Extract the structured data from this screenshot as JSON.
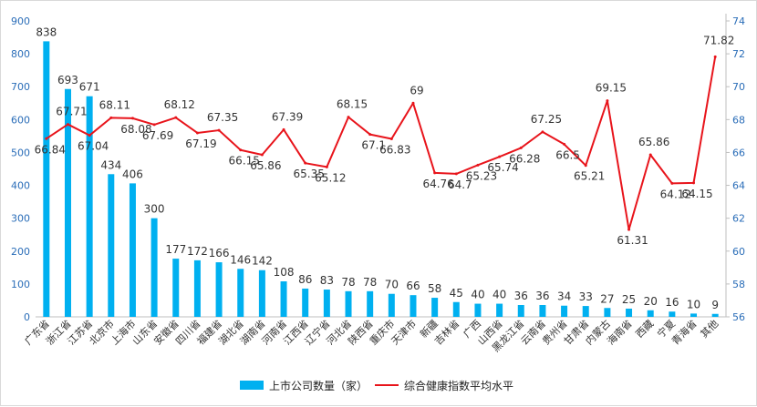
{
  "chart_data": {
    "type": "bar",
    "categories": [
      "广东省",
      "浙江省",
      "江苏省",
      "北京市",
      "上海市",
      "山东省",
      "安徽省",
      "四川省",
      "福建省",
      "湖北省",
      "湖南省",
      "河南省",
      "江西省",
      "辽宁省",
      "河北省",
      "陕西省",
      "重庆市",
      "天津市",
      "新疆",
      "吉林省",
      "广西",
      "山西省",
      "黑龙江省",
      "云南省",
      "贵州省",
      "甘肃省",
      "内蒙古",
      "海南省",
      "西藏",
      "宁夏",
      "青海省",
      "其他"
    ],
    "series": [
      {
        "name": "上市公司数量（家）",
        "type": "bar",
        "axis": "left",
        "color": "#00b0f0",
        "values": [
          838,
          693,
          671,
          434,
          406,
          300,
          177,
          172,
          166,
          146,
          142,
          108,
          86,
          83,
          78,
          78,
          70,
          66,
          58,
          45,
          40,
          40,
          36,
          36,
          34,
          33,
          27,
          25,
          20,
          16,
          10,
          9
        ]
      },
      {
        "name": "综合健康指数平均水平",
        "type": "line",
        "axis": "right",
        "color": "#e8141b",
        "values": [
          66.84,
          67.71,
          67.04,
          68.11,
          68.08,
          67.69,
          68.12,
          67.19,
          67.35,
          66.15,
          65.86,
          67.39,
          65.35,
          65.12,
          68.15,
          67.1,
          66.83,
          69,
          64.76,
          64.7,
          65.23,
          65.74,
          66.28,
          67.25,
          66.5,
          65.21,
          69.15,
          61.31,
          65.86,
          64.12,
          64.15,
          71.82
        ]
      }
    ],
    "line_label_text": [
      "66.84",
      "67.71",
      "67.04",
      "68.11",
      "68.08",
      "67.69",
      "68.12",
      "67.19",
      "67.35",
      "66.15",
      "65.86",
      "67.39",
      "65.35",
      "65.12",
      "68.15",
      "67.1",
      "66.83",
      "69",
      "64.76",
      "64.7",
      "65.23",
      "65.74",
      "66.28",
      "67.25",
      "66.5",
      "65.21",
      "69.15",
      "61.31",
      "65.86",
      "64.12",
      "64.15",
      "71.82"
    ],
    "y_left": {
      "min": 0,
      "max": 900,
      "step": 100,
      "ticks": [
        "0",
        "100",
        "200",
        "300",
        "400",
        "500",
        "600",
        "700",
        "800",
        "900"
      ]
    },
    "y_right": {
      "min": 56,
      "max": 74,
      "step": 2,
      "ticks": [
        "56",
        "58",
        "60",
        "62",
        "64",
        "66",
        "68",
        "70",
        "72",
        "74"
      ]
    },
    "legend": {
      "position": "bottom-center"
    },
    "grid": false,
    "title": "",
    "xlabel": "",
    "ylabel": ""
  }
}
